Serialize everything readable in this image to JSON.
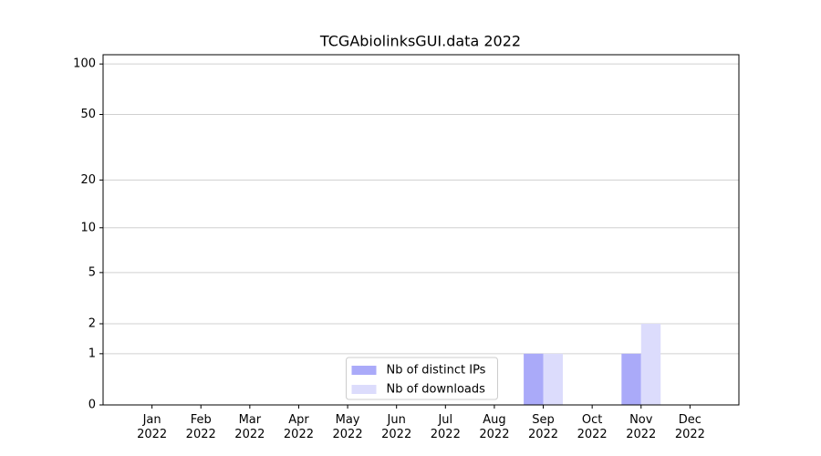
{
  "chart_data": {
    "type": "bar",
    "title": "TCGAbiolinksGUI.data 2022",
    "categories": [
      "Jan 2022",
      "Feb 2022",
      "Mar 2022",
      "Apr 2022",
      "May 2022",
      "Jun 2022",
      "Jul 2022",
      "Aug 2022",
      "Sep 2022",
      "Oct 2022",
      "Nov 2022",
      "Dec 2022"
    ],
    "series": [
      {
        "name": "Nb of distinct IPs",
        "color": "#aaaaf9",
        "values": [
          0,
          0,
          0,
          0,
          0,
          0,
          0,
          0,
          1,
          0,
          1,
          0
        ]
      },
      {
        "name": "Nb of downloads",
        "color": "#dcdcfc",
        "values": [
          0,
          0,
          0,
          0,
          0,
          0,
          0,
          0,
          1,
          0,
          2,
          0
        ]
      }
    ],
    "yscale": "log1p",
    "ylim": [
      0,
      113.5
    ],
    "yticks": [
      0,
      1,
      2,
      5,
      10,
      20,
      50,
      100
    ],
    "grid": true,
    "legend": "lower center"
  }
}
